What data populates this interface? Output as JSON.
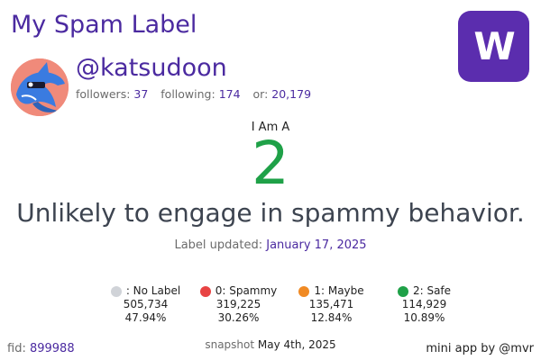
{
  "header": {
    "title": "My Spam Label",
    "logo_letter": "W",
    "logo_color": "#5b2dae"
  },
  "profile": {
    "username": "@katsudoon",
    "followers_label": "followers:",
    "followers": "37",
    "following_label": "following:",
    "following": "174",
    "or_label": "or:",
    "or_value": "20,179",
    "avatar_icon": "dolphin-avatar-icon"
  },
  "label": {
    "intro": "I Am A",
    "value": "2",
    "value_color": "#1fa148",
    "description": "Unlikely to engage in spammy behavior.",
    "updated_label": "Label updated:",
    "updated_date": "January 17, 2025"
  },
  "legend": [
    {
      "label": ": No Label",
      "count": "505,734",
      "percent": "47.94%",
      "color": "#d0d3d8"
    },
    {
      "label": "0: Spammy",
      "count": "319,225",
      "percent": "30.26%",
      "color": "#e84343"
    },
    {
      "label": "1: Maybe",
      "count": "135,471",
      "percent": "12.84%",
      "color": "#f08a24"
    },
    {
      "label": "2: Safe",
      "count": "114,929",
      "percent": "10.89%",
      "color": "#1fa148"
    }
  ],
  "footer": {
    "fid_label": "fid:",
    "fid": "899988",
    "snapshot_label": "snapshot",
    "snapshot_date": "May 4th, 2025",
    "credit": "mini app by @mvr"
  }
}
